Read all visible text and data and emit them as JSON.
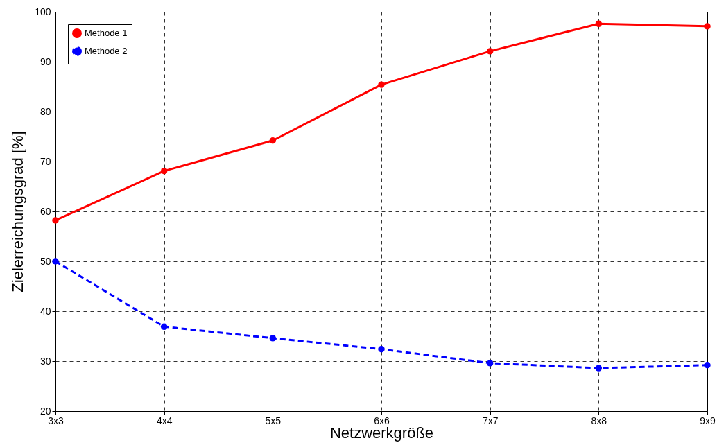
{
  "chart_data": {
    "type": "line",
    "xlabel": "Netzwerkgröße",
    "ylabel": "Zielerreichungsgrad [%]",
    "categories": [
      "3x3",
      "4x4",
      "5x5",
      "6x6",
      "7x7",
      "8x8",
      "9x9"
    ],
    "series": [
      {
        "name": "Methode 1",
        "color": "#ff0000",
        "line_style": "solid",
        "values": [
          58.2,
          68.1,
          74.2,
          85.4,
          92.1,
          97.6,
          97.1
        ]
      },
      {
        "name": "Methode 2",
        "color": "#0000ff",
        "line_style": "dashed",
        "values": [
          50.0,
          36.9,
          34.6,
          32.4,
          29.6,
          28.6,
          29.2
        ]
      }
    ],
    "ylim": [
      20,
      100
    ],
    "yticks": [
      20,
      30,
      40,
      50,
      60,
      70,
      80,
      90,
      100
    ],
    "grid": true,
    "legend": "top left",
    "marker": "circle"
  }
}
